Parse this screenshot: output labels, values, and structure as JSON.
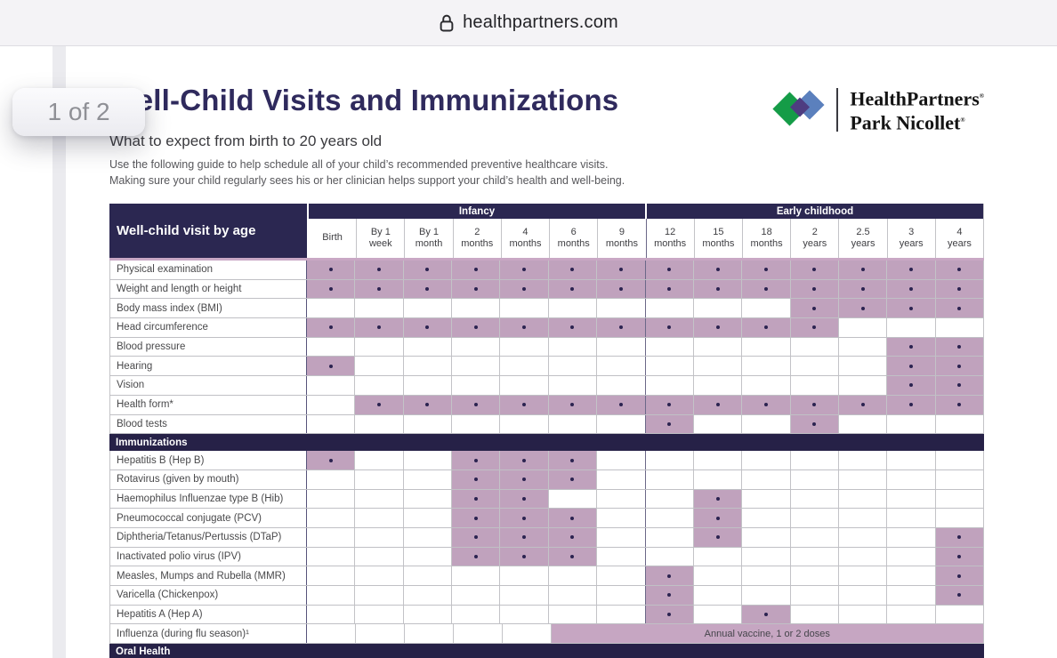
{
  "browser": {
    "url": "healthpartners.com"
  },
  "page_badge": "1 of 2",
  "doc": {
    "title": "Well-Child Visits and Immunizations",
    "subtitle": "What to expect from birth to 20 years old",
    "intro_line1": "Use the following guide to help schedule all of your child’s recommended preventive healthcare visits.",
    "intro_line2": "Making sure your child regularly sees his or her clinician helps support your child’s health and well-being.",
    "logo": {
      "line1": "HealthPartners",
      "line2": "Park Nicollet",
      "mark": "®"
    }
  },
  "colors": {
    "accent_navy": "#2b2751",
    "cell_mauve": "#c0a2bd",
    "dot_navy": "#2b2350",
    "header_underline": "#c9a8c5",
    "logo_green": "#159c47",
    "logo_blue": "#5b80bd",
    "logo_purple": "#4e3d80"
  },
  "table": {
    "corner_label": "Well-child visit by age",
    "groups": [
      {
        "label": "Infancy",
        "span": 7
      },
      {
        "label": "Early childhood",
        "span": 7
      }
    ],
    "columns": [
      [
        "Birth"
      ],
      [
        "By 1",
        "week"
      ],
      [
        "By 1",
        "month"
      ],
      [
        "2",
        "months"
      ],
      [
        "4",
        "months"
      ],
      [
        "6",
        "months"
      ],
      [
        "9",
        "months"
      ],
      [
        "12",
        "months"
      ],
      [
        "15",
        "months"
      ],
      [
        "18",
        "months"
      ],
      [
        "2",
        "years"
      ],
      [
        "2.5",
        "years"
      ],
      [
        "3",
        "years"
      ],
      [
        "4",
        "years"
      ]
    ],
    "sections": [
      {
        "title": "",
        "rows": [
          {
            "label": "Physical examination",
            "dots": [
              1,
              1,
              1,
              1,
              1,
              1,
              1,
              1,
              1,
              1,
              1,
              1,
              1,
              1
            ]
          },
          {
            "label": "Weight and length or height",
            "dots": [
              1,
              1,
              1,
              1,
              1,
              1,
              1,
              1,
              1,
              1,
              1,
              1,
              1,
              1
            ]
          },
          {
            "label": "Body mass index (BMI)",
            "dots": [
              0,
              0,
              0,
              0,
              0,
              0,
              0,
              0,
              0,
              0,
              1,
              1,
              1,
              1
            ]
          },
          {
            "label": "Head circumference",
            "dots": [
              1,
              1,
              1,
              1,
              1,
              1,
              1,
              1,
              1,
              1,
              1,
              0,
              0,
              0
            ]
          },
          {
            "label": "Blood pressure",
            "dots": [
              0,
              0,
              0,
              0,
              0,
              0,
              0,
              0,
              0,
              0,
              0,
              0,
              1,
              1
            ]
          },
          {
            "label": "Hearing",
            "dots": [
              1,
              0,
              0,
              0,
              0,
              0,
              0,
              0,
              0,
              0,
              0,
              0,
              1,
              1
            ]
          },
          {
            "label": "Vision",
            "dots": [
              0,
              0,
              0,
              0,
              0,
              0,
              0,
              0,
              0,
              0,
              0,
              0,
              1,
              1
            ]
          },
          {
            "label": "Health form*",
            "dots": [
              0,
              1,
              1,
              1,
              1,
              1,
              1,
              1,
              1,
              1,
              1,
              1,
              1,
              1
            ]
          },
          {
            "label": "Blood tests",
            "dots": [
              0,
              0,
              0,
              0,
              0,
              0,
              0,
              1,
              0,
              0,
              1,
              0,
              0,
              0
            ]
          }
        ]
      },
      {
        "title": "Immunizations",
        "rows": [
          {
            "label": "Hepatitis B (Hep B)",
            "dots": [
              1,
              0,
              0,
              1,
              1,
              1,
              0,
              0,
              0,
              0,
              0,
              0,
              0,
              0
            ]
          },
          {
            "label": "Rotavirus (given by mouth)",
            "dots": [
              0,
              0,
              0,
              1,
              1,
              1,
              0,
              0,
              0,
              0,
              0,
              0,
              0,
              0
            ]
          },
          {
            "label": "Haemophilus Influenzae type B (Hib)",
            "dots": [
              0,
              0,
              0,
              1,
              1,
              0,
              0,
              0,
              1,
              0,
              0,
              0,
              0,
              0
            ]
          },
          {
            "label": "Pneumococcal conjugate (PCV)",
            "dots": [
              0,
              0,
              0,
              1,
              1,
              1,
              0,
              0,
              1,
              0,
              0,
              0,
              0,
              0
            ]
          },
          {
            "label": "Diphtheria/Tetanus/Pertussis (DTaP)",
            "dots": [
              0,
              0,
              0,
              1,
              1,
              1,
              0,
              0,
              1,
              0,
              0,
              0,
              0,
              1
            ]
          },
          {
            "label": "Inactivated polio virus (IPV)",
            "dots": [
              0,
              0,
              0,
              1,
              1,
              1,
              0,
              0,
              0,
              0,
              0,
              0,
              0,
              1
            ]
          },
          {
            "label": "Measles, Mumps and Rubella (MMR)",
            "dots": [
              0,
              0,
              0,
              0,
              0,
              0,
              0,
              1,
              0,
              0,
              0,
              0,
              0,
              1
            ]
          },
          {
            "label": "Varicella (Chickenpox)",
            "dots": [
              0,
              0,
              0,
              0,
              0,
              0,
              0,
              1,
              0,
              0,
              0,
              0,
              0,
              1
            ]
          },
          {
            "label": "Hepatitis A (Hep A)",
            "dots": [
              0,
              0,
              0,
              0,
              0,
              0,
              0,
              1,
              0,
              1,
              0,
              0,
              0,
              0
            ]
          },
          {
            "label": "Influenza (during flu season)¹",
            "merge": {
              "start": 5,
              "span": 9,
              "text": "Annual vaccine, 1 or 2 doses"
            }
          }
        ]
      },
      {
        "title": "Oral Health",
        "rows": []
      }
    ]
  }
}
